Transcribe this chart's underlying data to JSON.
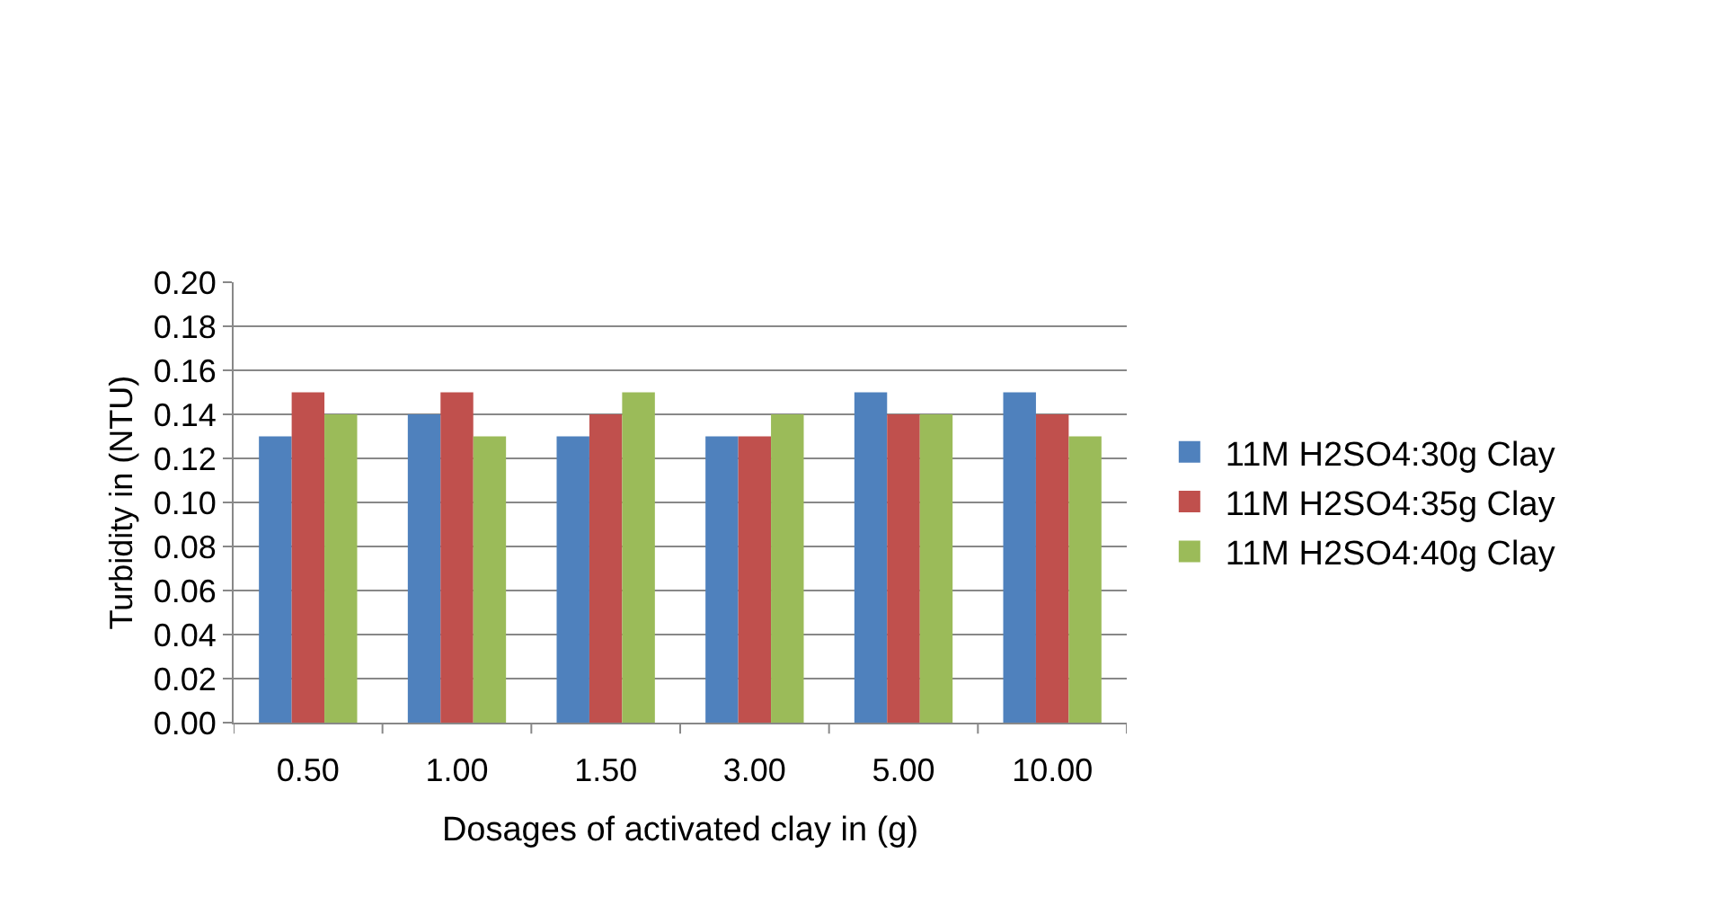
{
  "chart_data": {
    "type": "bar",
    "xlabel": "Dosages of activated clay in (g)",
    "ylabel": "Turbidity in (NTU)",
    "categories": [
      "0.50",
      "1.00",
      "1.50",
      "3.00",
      "5.00",
      "10.00"
    ],
    "series": [
      {
        "name": "11M H2SO4:30g Clay",
        "color": "#4f81bd",
        "values": [
          0.13,
          0.14,
          0.13,
          0.13,
          0.15,
          0.15
        ]
      },
      {
        "name": "11M H2SO4:35g Clay",
        "color": "#c0504d",
        "values": [
          0.15,
          0.15,
          0.14,
          0.13,
          0.14,
          0.14
        ]
      },
      {
        "name": "11M H2SO4:40g Clay",
        "color": "#9bbb59",
        "values": [
          0.14,
          0.13,
          0.15,
          0.14,
          0.14,
          0.13
        ]
      }
    ],
    "ylim": [
      0,
      0.2
    ],
    "yticks": [
      {
        "value": 0,
        "label": "0.00"
      },
      {
        "value": 0.02,
        "label": "0.02"
      },
      {
        "value": 0.04,
        "label": "0.04"
      },
      {
        "value": 0.06,
        "label": "0.06"
      },
      {
        "value": 0.08,
        "label": "0.08"
      },
      {
        "value": 0.1,
        "label": "0.10"
      },
      {
        "value": 0.12,
        "label": "0.12"
      },
      {
        "value": 0.14,
        "label": "0.14"
      },
      {
        "value": 0.16,
        "label": "0.16"
      },
      {
        "value": 0.18,
        "label": "0.18"
      },
      {
        "value": 0.2,
        "label": "0.20"
      }
    ],
    "grid": "y",
    "legend": "right"
  }
}
